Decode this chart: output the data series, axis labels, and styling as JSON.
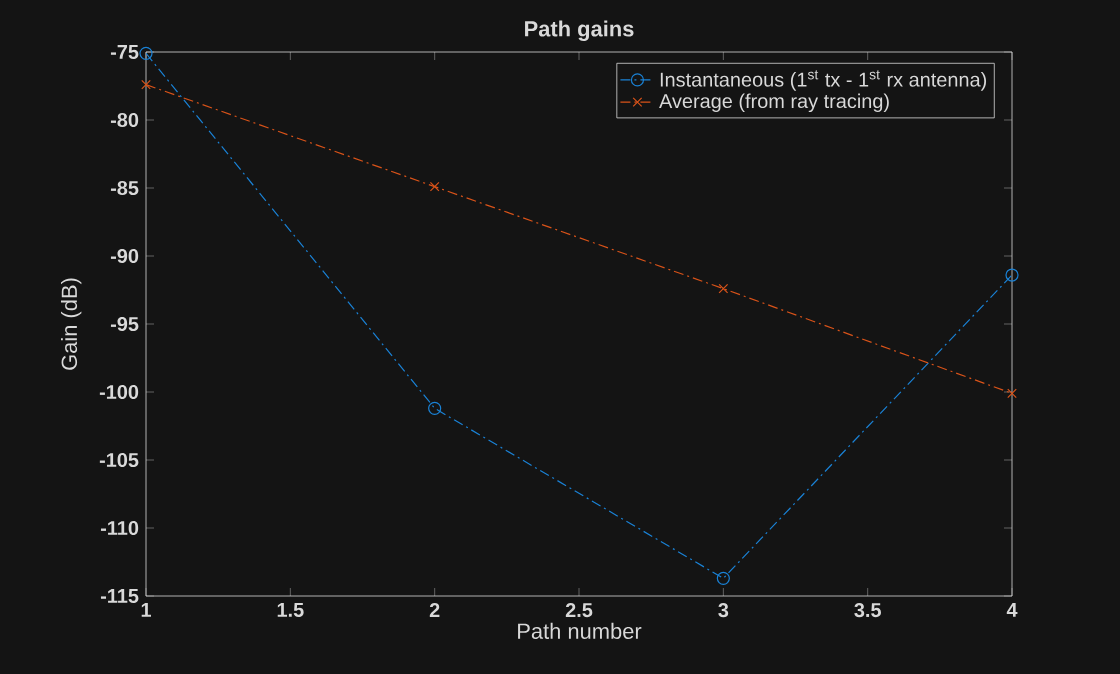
{
  "chart_data": {
    "type": "line",
    "title": "Path gains",
    "xlabel": "Path number",
    "ylabel": "Gain (dB)",
    "x": [
      1,
      2,
      3,
      4
    ],
    "series": [
      {
        "name": "Instantaneous (1$^{st}$ tx - 1$^{st}$ rx antenna)",
        "color": "#1a82d6",
        "values": [
          -75.1,
          -101.2,
          -113.7,
          -91.4
        ],
        "marker": "circle",
        "line_style": "dashdot"
      },
      {
        "name": "Average (from ray tracing)",
        "color": "#d95319",
        "values": [
          -77.4,
          -84.9,
          -92.4,
          -100.1
        ],
        "marker": "cross",
        "line_style": "dashdot"
      }
    ],
    "xlim": [
      1,
      4
    ],
    "xticks": [
      1,
      1.5,
      2,
      2.5,
      3,
      3.5,
      4
    ],
    "ylim": [
      -115,
      -75
    ],
    "yticks": [
      -115,
      -110,
      -105,
      -100,
      -95,
      -90,
      -85,
      -80,
      -75
    ],
    "grid": false,
    "legend": "top right"
  }
}
